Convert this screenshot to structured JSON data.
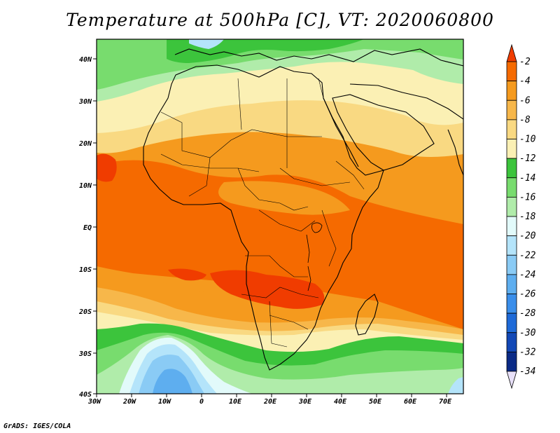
{
  "title": "Temperature at 500hPa [C], VT: 2020060800",
  "credit": "GrADS: IGES/COLA",
  "lon_ticks": [
    "30W",
    "20W",
    "10W",
    "0",
    "10E",
    "20E",
    "30E",
    "40E",
    "50E",
    "60E",
    "70E"
  ],
  "lat_ticks": [
    "40N",
    "30N",
    "20N",
    "10N",
    "EQ",
    "10S",
    "20S",
    "30S",
    "40S"
  ],
  "colorbar": {
    "labels": [
      "-2",
      "-4",
      "-6",
      "-8",
      "-10",
      "-12",
      "-14",
      "-16",
      "-18",
      "-20",
      "-22",
      "-24",
      "-26",
      "-28",
      "-30",
      "-32",
      "-34"
    ],
    "colors": [
      "#f03c00",
      "#f56a00",
      "#f59a1e",
      "#f7b74a",
      "#f9d982",
      "#fbf0b4",
      "#3cc43c",
      "#78dc6e",
      "#b0ecaa",
      "#e2fafa",
      "#b4e4fa",
      "#8acbf5",
      "#5eaeef",
      "#3a8eea",
      "#1e6ad8",
      "#1248b6",
      "#0a2a86",
      "#061a5a"
    ]
  },
  "colors": {
    "warm_strong": "#f03c00",
    "warm": "#f56a00",
    "warm_mid": "#f59a1e",
    "warm_light": "#f7b74a",
    "yellow": "#f9d982",
    "pale_yellow": "#fbf0b4",
    "green": "#3cc43c",
    "light_green": "#78dc6e",
    "pale_green": "#b0ecaa",
    "cyan": "#e2fafa",
    "light_blue": "#b4e4fa",
    "blue": "#8acbf5",
    "deep_blue": "#5eaeef"
  }
}
